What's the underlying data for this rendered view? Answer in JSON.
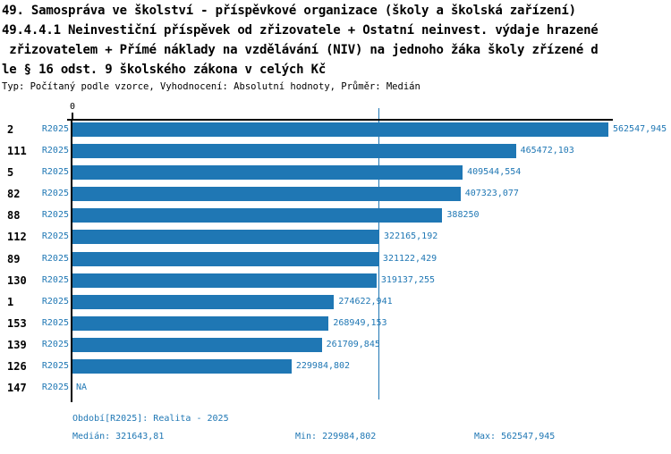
{
  "window": {
    "background": "#ffffff"
  },
  "header": {
    "line1": "49. Samospráva ve školství - příspěvkové organizace (školy a školská zařízení)",
    "line2": "49.4.4.1 Neinvestiční příspěvek od zřizovatele + Ostatní neinvest. výdaje hrazené",
    "line3": " zřizovatelem + Přímé náklady na vzdělávání (NIV) na jednoho žáka školy zřízené d",
    "line4": "le § 16 odst. 9 školského zákona v celých Kč",
    "meta": "Typ: Počítaný podle vzorce, Vyhodnocení: Absolutní hodnoty, Průměr: Medián"
  },
  "chart_data": {
    "type": "bar",
    "orientation": "horizontal",
    "section": "49. Samospráva ve školství - příspěvkové organizace (školy a školská zařízení)",
    "title": "49.4.4.1 Neinvestiční příspěvek od zřizovatele + Ostatní neinvest. výdaje hrazené zřizovatelem + Přímé náklady na vzdělávání (NIV) na jednoho žáka školy zřízené dle § 16 odst. 9 školského zákona v celých Kč",
    "categories": [
      "2",
      "111",
      "5",
      "82",
      "88",
      "112",
      "89",
      "130",
      "1",
      "153",
      "139",
      "126",
      "147"
    ],
    "series": [
      {
        "name": "R2025",
        "values": [
          562547.945,
          465472.103,
          409544.554,
          407323.077,
          388250,
          322165.192,
          321122.429,
          319137.255,
          274622.941,
          268949.153,
          261709.845,
          229984.802,
          null
        ]
      }
    ],
    "value_labels": [
      "562547,945",
      "465472,103",
      "409544,554",
      "407323,077",
      "388250",
      "322165,192",
      "321122,429",
      "319137,255",
      "274622,941",
      "268949,153",
      "261709,845",
      "229984,802",
      "NA"
    ],
    "x_tick_labels": [
      "0"
    ],
    "xlim": [
      0,
      567500
    ],
    "median_line_value": 321643.81,
    "stats": {
      "median": 321643.81,
      "min": 229984.802,
      "max": 562547.945
    },
    "bar_color": "#1f77b4",
    "grid": false,
    "legend": false
  },
  "axis": {
    "zero_label": "0"
  },
  "footer": {
    "period": "Období[R2025]: Realita - 2025",
    "median": "Medián: 321643,81",
    "min": "Min: 229984,802",
    "max": "Max: 562547,945"
  },
  "colors": {
    "bar": "#1f77b4",
    "blue_text": "#1f77b4",
    "axis": "#000000"
  }
}
